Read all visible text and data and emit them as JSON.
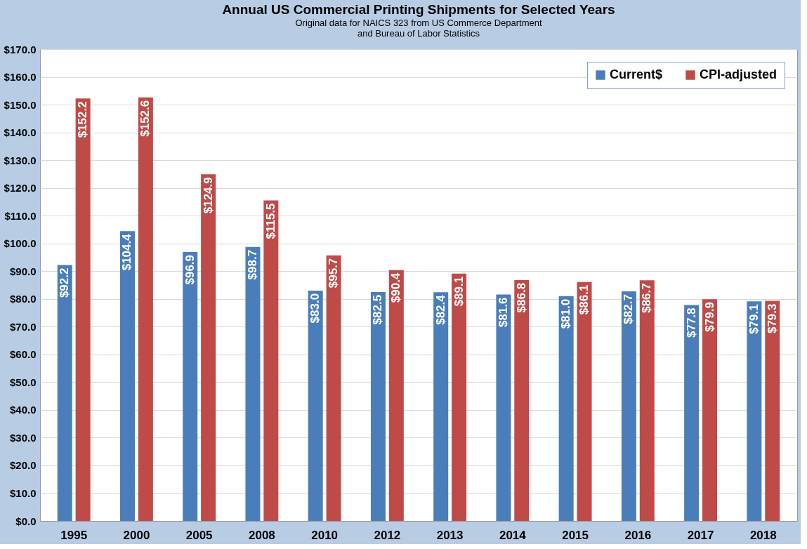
{
  "chart_data": {
    "type": "bar",
    "title": "Annual US Commercial Printing Shipments for Selected Years",
    "subtitle": [
      "Original data for NAICS 323 from US Commerce Department",
      "and Bureau of Labor Statistics"
    ],
    "categories": [
      "1995",
      "2000",
      "2005",
      "2008",
      "2010",
      "2012",
      "2013",
      "2014",
      "2015",
      "2016",
      "2017",
      "2018"
    ],
    "series": [
      {
        "name": "Current$",
        "color": "#4a7ebb",
        "values": [
          92.2,
          104.4,
          96.9,
          98.7,
          83.0,
          82.5,
          82.4,
          81.6,
          81.0,
          82.7,
          77.8,
          79.1
        ],
        "value_labels": [
          "$92.2",
          "$104.4",
          "$96.9",
          "$98.7",
          "$83.0",
          "$82.5",
          "$82.4",
          "$81.6",
          "$81.0",
          "$82.7",
          "$77.8",
          "$79.1"
        ]
      },
      {
        "name": "CPI-adjusted",
        "color": "#be4b48",
        "values": [
          152.2,
          152.6,
          124.9,
          115.5,
          95.7,
          90.4,
          89.1,
          86.8,
          86.1,
          86.7,
          79.9,
          79.3
        ],
        "value_labels": [
          "$152.2",
          "$152.6",
          "$124.9",
          "$115.5",
          "$95.7",
          "$90.4",
          "$89.1",
          "$86.8",
          "$86.1",
          "$86.7",
          "$79.9",
          "$79.3"
        ]
      }
    ],
    "ylim": [
      0,
      170
    ],
    "yticks": [
      {
        "value": 0,
        "label": "$0.0"
      },
      {
        "value": 10,
        "label": "$10.0"
      },
      {
        "value": 20,
        "label": "$20.0"
      },
      {
        "value": 30,
        "label": "$30.0"
      },
      {
        "value": 40,
        "label": "$40.0"
      },
      {
        "value": 50,
        "label": "$50.0"
      },
      {
        "value": 60,
        "label": "$60.0"
      },
      {
        "value": 70,
        "label": "$70.0"
      },
      {
        "value": 80,
        "label": "$80.0"
      },
      {
        "value": 90,
        "label": "$90.0"
      },
      {
        "value": 100,
        "label": "$100.0"
      },
      {
        "value": 110,
        "label": "$110.0"
      },
      {
        "value": 120,
        "label": "$120.0"
      },
      {
        "value": 130,
        "label": "$130.0"
      },
      {
        "value": 140,
        "label": "$140.0"
      },
      {
        "value": 150,
        "label": "$150.0"
      },
      {
        "value": 160,
        "label": "$160.0"
      },
      {
        "value": 170,
        "label": "$170.0"
      }
    ],
    "grid": "y",
    "legend": "top right"
  }
}
